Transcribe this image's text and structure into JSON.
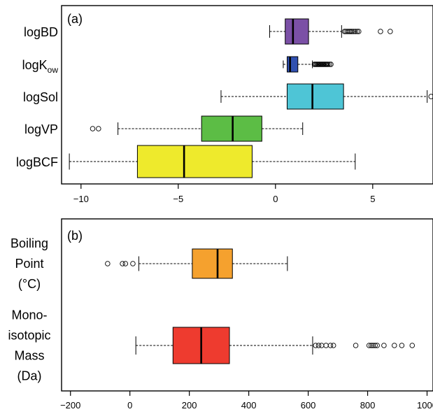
{
  "chart_data": [
    {
      "type": "boxplot",
      "orientation": "horizontal",
      "panel_label": "(a)",
      "xlim": [
        -11,
        8.1
      ],
      "xticks": [
        -10,
        -5,
        0,
        5
      ],
      "xtick_labels": [
        "−10",
        "−5",
        "0",
        "5"
      ],
      "series": [
        {
          "category": "logBD",
          "label_main": "logBD",
          "label_sub": "",
          "color": "#7b50a6",
          "whisker_low": -0.3,
          "q1": 0.5,
          "median": 0.9,
          "q3": 1.7,
          "whisker_high": 3.4,
          "outliers": [
            3.55,
            3.62,
            3.7,
            3.78,
            3.85,
            3.92,
            4.0,
            4.1,
            4.2,
            4.28,
            5.4,
            5.9
          ]
        },
        {
          "category": "logKow",
          "label_main": "logK",
          "label_sub": "ow",
          "color": "#3050b0",
          "whisker_low": 0.4,
          "q1": 0.6,
          "median": 0.75,
          "q3": 1.15,
          "whisker_high": 1.9,
          "outliers": [
            2.0,
            2.05,
            2.1,
            2.15,
            2.2,
            2.25,
            2.3,
            2.35,
            2.4,
            2.45,
            2.5,
            2.55,
            2.6,
            2.65,
            2.7,
            2.78,
            2.85
          ]
        },
        {
          "category": "logSol",
          "label_main": "logSol",
          "label_sub": "",
          "color": "#4ec5d6",
          "whisker_low": -2.8,
          "q1": 0.6,
          "median": 1.9,
          "q3": 3.5,
          "whisker_high": 7.8,
          "outliers": [
            8.0
          ]
        },
        {
          "category": "logVP",
          "label_main": "logVP",
          "label_sub": "",
          "color": "#5cbd45",
          "whisker_low": -8.1,
          "q1": -3.8,
          "median": -2.2,
          "q3": -0.7,
          "whisker_high": 1.4,
          "outliers": [
            -9.4,
            -9.1
          ]
        },
        {
          "category": "logBCF",
          "label_main": "logBCF",
          "label_sub": "",
          "color": "#eeea2c",
          "whisker_low": -10.6,
          "q1": -7.1,
          "median": -4.7,
          "q3": -1.2,
          "whisker_high": 4.1,
          "outliers": []
        }
      ]
    },
    {
      "type": "boxplot",
      "orientation": "horizontal",
      "panel_label": "(b)",
      "xlim": [
        -230,
        1020
      ],
      "xticks": [
        -200,
        0,
        200,
        400,
        600,
        800,
        1000
      ],
      "xtick_labels": [
        "−200",
        "0",
        "200",
        "400",
        "600",
        "800",
        "1000"
      ],
      "series": [
        {
          "category": "Boiling Point (°C)",
          "label_lines": [
            "Boiling",
            "Point",
            "(°C)"
          ],
          "color": "#f5a12e",
          "whisker_low": 30,
          "q1": 210,
          "median": 295,
          "q3": 345,
          "whisker_high": 530,
          "outliers": [
            -75,
            -25,
            -15,
            10
          ]
        },
        {
          "category": "Monoisotopic Mass (Da)",
          "label_lines": [
            "Mono-",
            "isotopic",
            "Mass",
            "(Da)"
          ],
          "color": "#ee3b2f",
          "whisker_low": 20,
          "q1": 145,
          "median": 240,
          "q3": 335,
          "whisker_high": 615,
          "outliers": [
            625,
            635,
            645,
            660,
            675,
            685,
            760,
            805,
            812,
            818,
            825,
            832,
            855,
            890,
            915,
            950
          ]
        }
      ]
    }
  ]
}
